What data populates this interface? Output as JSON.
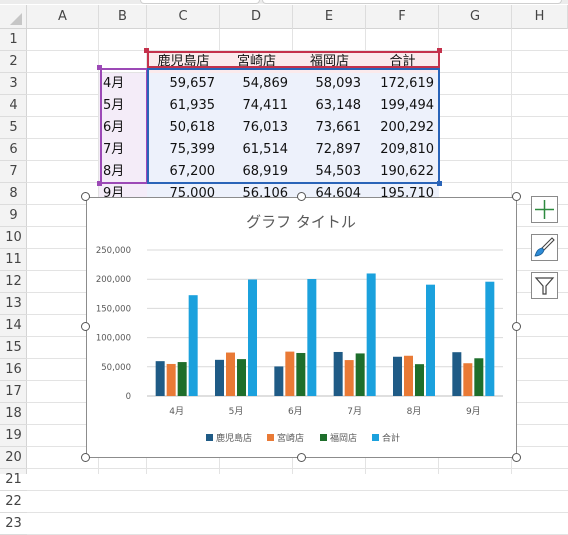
{
  "columns": [
    "A",
    "B",
    "C",
    "D",
    "E",
    "F",
    "G",
    "H"
  ],
  "rows": [
    "1",
    "2",
    "3",
    "4",
    "5",
    "6",
    "7",
    "8",
    "9",
    "10",
    "11",
    "12",
    "13",
    "14",
    "15",
    "16",
    "17",
    "18",
    "19",
    "20",
    "21",
    "22",
    "23"
  ],
  "table": {
    "headers": [
      "鹿児島店",
      "宮崎店",
      "福岡店",
      "合計"
    ],
    "rows": [
      {
        "label": "4月",
        "values": [
          "59,657",
          "54,869",
          "58,093",
          "172,619"
        ]
      },
      {
        "label": "5月",
        "values": [
          "61,935",
          "74,411",
          "63,148",
          "199,494"
        ]
      },
      {
        "label": "6月",
        "values": [
          "50,618",
          "76,013",
          "73,661",
          "200,292"
        ]
      },
      {
        "label": "7月",
        "values": [
          "75,399",
          "61,514",
          "72,897",
          "209,810"
        ]
      },
      {
        "label": "8月",
        "values": [
          "67,200",
          "68,919",
          "54,503",
          "190,622"
        ]
      },
      {
        "label": "9月",
        "values": [
          "75,000",
          "56,106",
          "64,604",
          "195,710"
        ]
      }
    ]
  },
  "chart_side_buttons": [
    "plus-icon",
    "brush-icon",
    "filter-icon"
  ],
  "chart_data": {
    "type": "bar",
    "title": "グラフ タイトル",
    "categories": [
      "4月",
      "5月",
      "6月",
      "7月",
      "8月",
      "9月"
    ],
    "series": [
      {
        "name": "鹿児島店",
        "color": "#1f5b86",
        "values": [
          59657,
          61935,
          50618,
          75399,
          67200,
          75000
        ]
      },
      {
        "name": "宮崎店",
        "color": "#e97a36",
        "values": [
          54869,
          74411,
          76013,
          61514,
          68919,
          56106
        ]
      },
      {
        "name": "福岡店",
        "color": "#1e6e2b",
        "values": [
          58093,
          63148,
          73661,
          72897,
          54503,
          64604
        ]
      },
      {
        "name": "合計",
        "color": "#1ba1dd",
        "values": [
          172619,
          199494,
          200292,
          209810,
          190622,
          195710
        ]
      }
    ],
    "ylim": [
      0,
      250000
    ],
    "yticks": [
      "0",
      "50,000",
      "100,000",
      "150,000",
      "200,000",
      "250,000"
    ],
    "grid": true,
    "legend": "bottom"
  }
}
